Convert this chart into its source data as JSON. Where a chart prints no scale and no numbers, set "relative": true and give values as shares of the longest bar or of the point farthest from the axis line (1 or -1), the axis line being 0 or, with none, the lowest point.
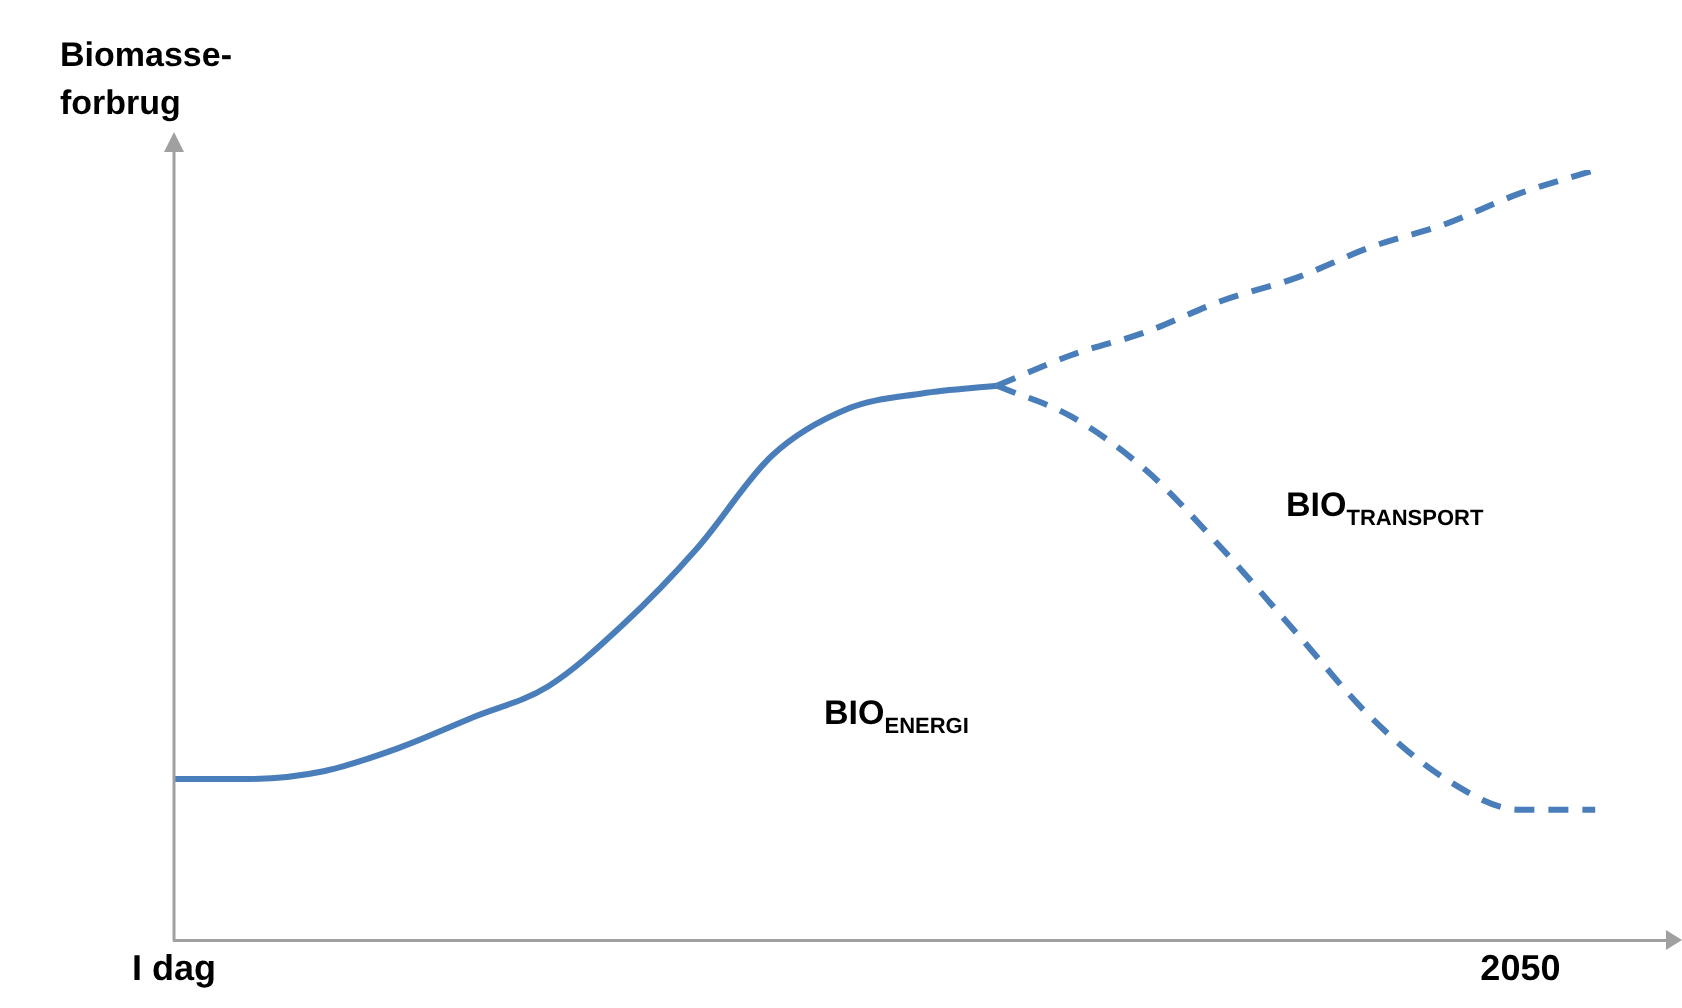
{
  "chart_data": {
    "type": "line",
    "relative": true,
    "ylabel": "Biomasse-\nforbrug",
    "categories": [
      "I dag",
      null,
      null,
      null,
      null,
      null,
      null,
      null,
      null,
      null,
      null,
      null,
      null,
      null,
      null,
      null,
      null,
      null,
      "2050",
      null,
      null
    ],
    "tick_labels": "x",
    "legend": false,
    "grid": false,
    "marker": "none",
    "annotations": [
      "BIO$_{ENERGI}$",
      "BIO$_{TRANSPORT}$"
    ],
    "series": [
      {
        "color": "#4a7ebb",
        "line_style": "solid",
        "values": [
          0.21,
          0.21,
          0.22,
          0.25,
          0.29,
          0.33,
          0.41,
          0.51,
          0.63,
          0.69,
          0.71,
          0.72,
          null,
          null,
          null,
          null,
          null,
          null,
          null,
          null,
          null
        ]
      },
      {
        "color": "#4a7ebb",
        "line_style": "dashed",
        "values": [
          null,
          null,
          null,
          null,
          null,
          null,
          null,
          null,
          null,
          null,
          null,
          0.72,
          0.76,
          0.79,
          0.83,
          0.86,
          0.9,
          0.93,
          0.97,
          1,
          null
        ]
      },
      {
        "color": "#4a7ebb",
        "line_style": "dashed",
        "values": [
          null,
          null,
          null,
          null,
          null,
          null,
          null,
          null,
          null,
          null,
          null,
          0.72,
          0.68,
          0.61,
          0.51,
          0.4,
          0.29,
          0.21,
          0.17,
          0.17,
          null
        ]
      }
    ]
  }
}
